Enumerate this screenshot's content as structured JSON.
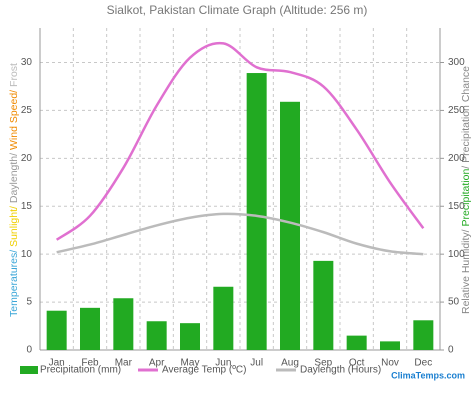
{
  "chart_data": {
    "type": "bar_line",
    "title": "Sialkot, Pakistan Climate Graph (Altitude: 256 m)",
    "y_label_parts": [
      {
        "text": "Temperatures/ ",
        "color": "#3aa6d8"
      },
      {
        "text": "Sunlight/ ",
        "color": "#f0d000"
      },
      {
        "text": "Daylength/ ",
        "color": "#999999"
      },
      {
        "text": "Wind Speed/ ",
        "color": "#f08a00"
      },
      {
        "text": "Frost",
        "color": "#bbbbbb"
      }
    ],
    "y2_label_parts": [
      {
        "text": "Relative Humidity/ ",
        "color": "#888888"
      },
      {
        "text": "Precipitation",
        "color": "#22aa22"
      },
      {
        "text": "/ Precipitation Chance",
        "color": "#888888"
      }
    ],
    "categories": [
      "Jan",
      "Feb",
      "Mar",
      "Apr",
      "May",
      "Jun",
      "Jul",
      "Aug",
      "Sep",
      "Oct",
      "Nov",
      "Dec"
    ],
    "series": [
      {
        "name": "Precipitation (mm)",
        "type": "bar",
        "axis": "y2",
        "color": "#22aa22",
        "values": [
          41,
          44,
          54,
          30,
          28,
          66,
          289,
          259,
          93,
          15,
          9,
          31
        ]
      },
      {
        "name": "Average Temp (ºC)",
        "type": "line",
        "color": "#e070d0",
        "values": [
          11.5,
          14,
          19,
          25.5,
          30.5,
          32,
          29.5,
          29,
          27.5,
          23,
          17.5,
          12.7
        ]
      },
      {
        "name": "Daylength (Hours)",
        "type": "line",
        "color": "#bbbbbb",
        "values": [
          10.2,
          11,
          12,
          13,
          13.8,
          14.2,
          14,
          13.3,
          12.3,
          11.1,
          10.3,
          10
        ]
      }
    ],
    "ylim": [
      0,
      33.6
    ],
    "yticks": [
      0,
      5,
      10,
      15,
      20,
      25,
      30
    ],
    "y2lim": [
      0,
      336
    ],
    "y2ticks": [
      0,
      50,
      100,
      150,
      200,
      250,
      300
    ],
    "grid": true,
    "watermark": "ClimaTemps.com"
  }
}
